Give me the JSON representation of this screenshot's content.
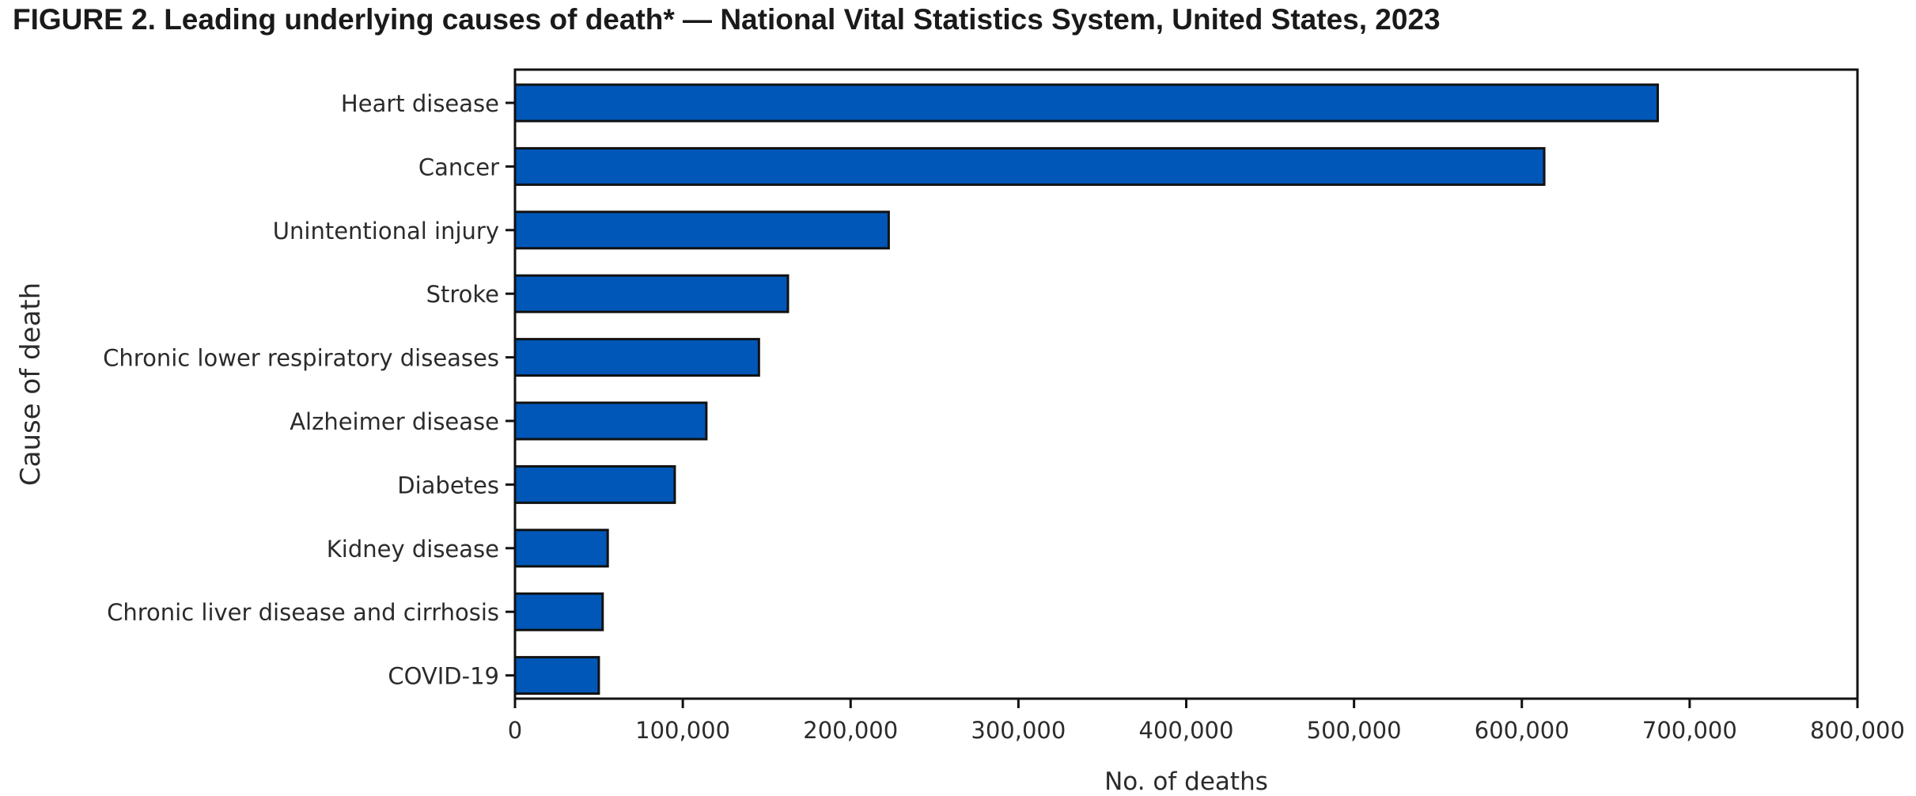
{
  "figure": {
    "label": "FIGURE 2",
    "title": ". Leading underlying causes of death* — National Vital Statistics System, United States, 2023"
  },
  "chart_data": {
    "type": "bar",
    "orientation": "horizontal",
    "categories": [
      "Heart disease",
      "Cancer",
      "Unintentional injury",
      "Stroke",
      "Chronic lower respiratory diseases",
      "Alzheimer disease",
      "Diabetes",
      "Kidney disease",
      "Chronic liver disease and cirrhosis",
      "COVID-19"
    ],
    "values": [
      680981,
      613349,
      222698,
      162639,
      145357,
      114034,
      95190,
      55253,
      52222,
      49932
    ],
    "xlabel": "No. of deaths",
    "ylabel": "Cause of death",
    "xlim": [
      0,
      800000
    ],
    "xticks": [
      0,
      100000,
      200000,
      300000,
      400000,
      500000,
      600000,
      700000,
      800000
    ],
    "xtick_labels": [
      "0",
      "100,000",
      "200,000",
      "300,000",
      "400,000",
      "500,000",
      "600,000",
      "700,000",
      "800,000"
    ],
    "grid": false,
    "legend": "none",
    "colors": {
      "bar": "#0057b8",
      "bar_edge": "#111111",
      "frame": "#111111"
    }
  }
}
